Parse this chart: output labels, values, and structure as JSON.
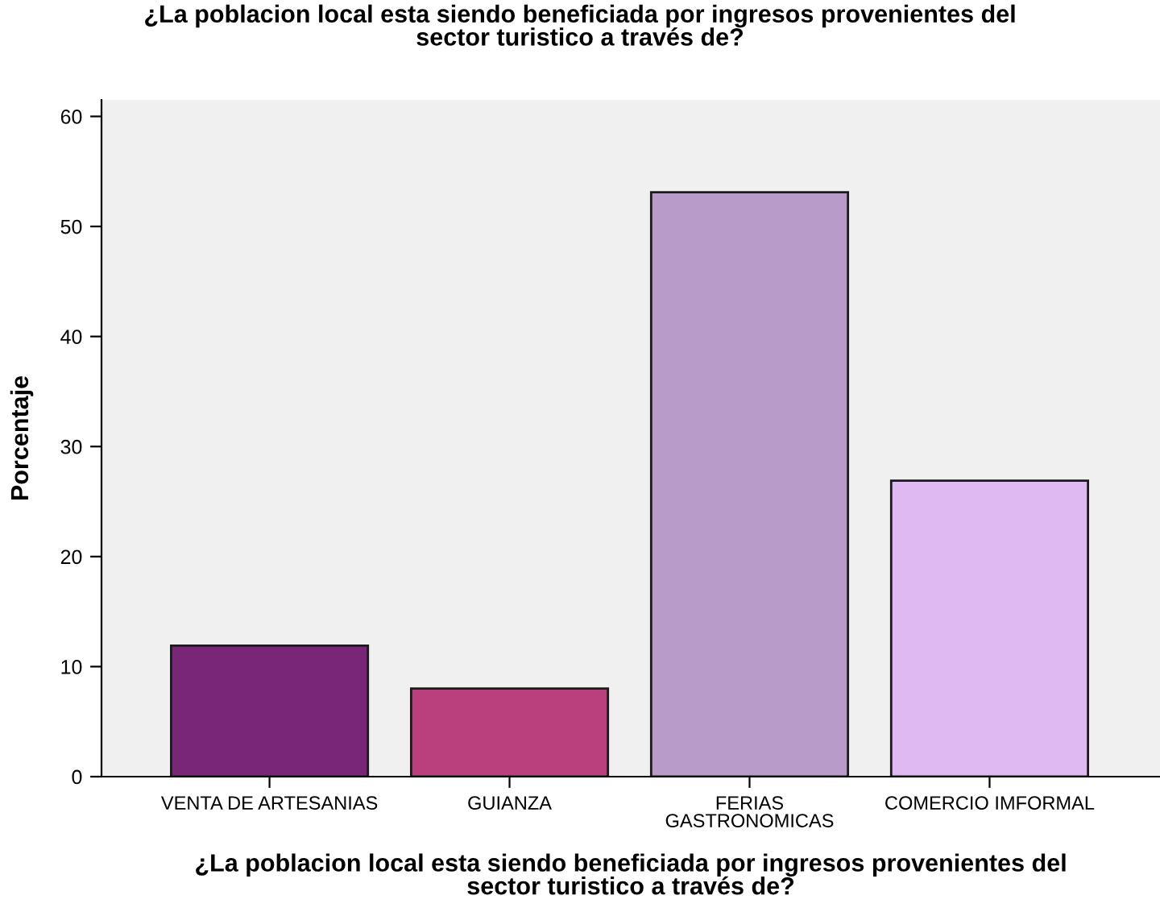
{
  "chart_data": {
    "type": "bar",
    "title": "¿La poblacion local esta siendo beneficiada por ingresos provenientes del\nsector turistico a través de?",
    "xlabel": "¿La poblacion local esta siendo beneficiada por ingresos provenientes del\nsector turistico a través de?",
    "ylabel": "Porcentaje",
    "categories": [
      "VENTA DE ARTESANIAS",
      "GUIANZA",
      "FERIAS\nGASTRONOMICAS",
      "COMERCIO IMFORMAL"
    ],
    "values": [
      11.9,
      8.0,
      53.1,
      26.9
    ],
    "colors": [
      "#7a2678",
      "#b9407c",
      "#b89bc8",
      "#dfb9f2"
    ],
    "ylim": [
      0,
      61.5
    ],
    "yticks": [
      0,
      10,
      20,
      30,
      40,
      50,
      60
    ],
    "grid": false,
    "legend": false
  }
}
